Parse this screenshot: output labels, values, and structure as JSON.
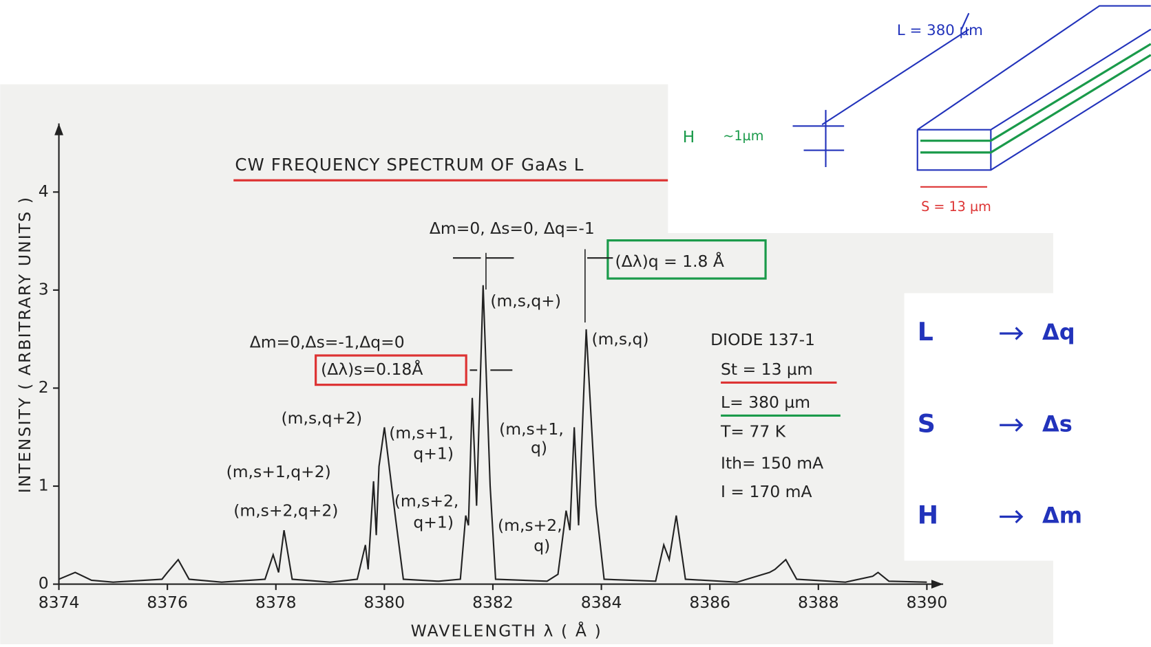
{
  "chart_data": {
    "type": "line",
    "title": "CW FREQUENCY SPECTRUM OF GaAs L",
    "xlabel": "WAVELENGTH λ ( Å )",
    "ylabel": "INTENSITY ( ARBITRARY UNITS )",
    "x": [
      8374.0,
      8374.3,
      8374.6,
      8375.0,
      8375.9,
      8376.0,
      8376.2,
      8376.4,
      8377.0,
      8377.8,
      8377.95,
      8378.05,
      8378.15,
      8378.3,
      8379.0,
      8379.5,
      8379.65,
      8379.7,
      8379.8,
      8379.85,
      8379.9,
      8380.0,
      8380.2,
      8380.35,
      8381.0,
      8381.4,
      8381.5,
      8381.55,
      8381.62,
      8381.7,
      8381.82,
      8381.95,
      8382.05,
      8383.0,
      8383.2,
      8383.35,
      8383.42,
      8383.5,
      8383.58,
      8383.72,
      8383.9,
      8384.05,
      8385.0,
      8385.15,
      8385.25,
      8385.38,
      8385.55,
      8386.5,
      8387.1,
      8387.2,
      8387.4,
      8387.6,
      8388.5,
      8389.0,
      8389.1,
      8389.3,
      8390.0
    ],
    "values": [
      0.05,
      0.12,
      0.04,
      0.02,
      0.05,
      0.12,
      0.25,
      0.05,
      0.02,
      0.05,
      0.3,
      0.12,
      0.55,
      0.05,
      0.02,
      0.05,
      0.4,
      0.15,
      1.05,
      0.5,
      1.2,
      1.6,
      0.7,
      0.05,
      0.03,
      0.05,
      0.7,
      0.6,
      1.9,
      0.8,
      3.05,
      1.0,
      0.05,
      0.03,
      0.1,
      0.75,
      0.55,
      1.6,
      0.6,
      2.6,
      0.8,
      0.05,
      0.03,
      0.4,
      0.25,
      0.7,
      0.05,
      0.02,
      0.12,
      0.15,
      0.25,
      0.05,
      0.02,
      0.08,
      0.12,
      0.03,
      0.02
    ],
    "color": "#222222",
    "xlim": [
      8374,
      8390.3
    ],
    "xticks": [
      8374,
      8376,
      8378,
      8380,
      8382,
      8384,
      8386,
      8388,
      8390
    ],
    "ylim": [
      0,
      4.7
    ],
    "yticks": [
      0,
      1,
      2,
      3,
      4
    ],
    "annotations": [
      "Δm=0, Δs=0, Δq=-1",
      "(Δλ)q = 1.8 Å",
      "(m,s,q+)",
      "(m,s,q)",
      "Δm=0,Δs=-1,Δq=0",
      "(Δλ)s=0.18Å",
      "(m,s,q+2)",
      "(m,s+1,",
      "q+1)",
      "(m,s+1,",
      "q)",
      "(m,s+1,q+2)",
      "(m,s+2,q+2)",
      "(m,s+2,",
      "q+1)",
      "(m,s+2,",
      "q)",
      "DIODE 137-1",
      "St = 13 µm",
      "L= 380 µm",
      "T= 77 K",
      "Ith= 150 mA",
      "I = 170 mA"
    ]
  },
  "notes": {
    "length": "L = 380 µm",
    "height_symbol": "H",
    "height": "~1µm",
    "stripe": "S = 13 µm",
    "rows": [
      [
        "L",
        "Δq"
      ],
      [
        "S",
        "Δs"
      ],
      [
        "H",
        "Δm"
      ]
    ]
  }
}
